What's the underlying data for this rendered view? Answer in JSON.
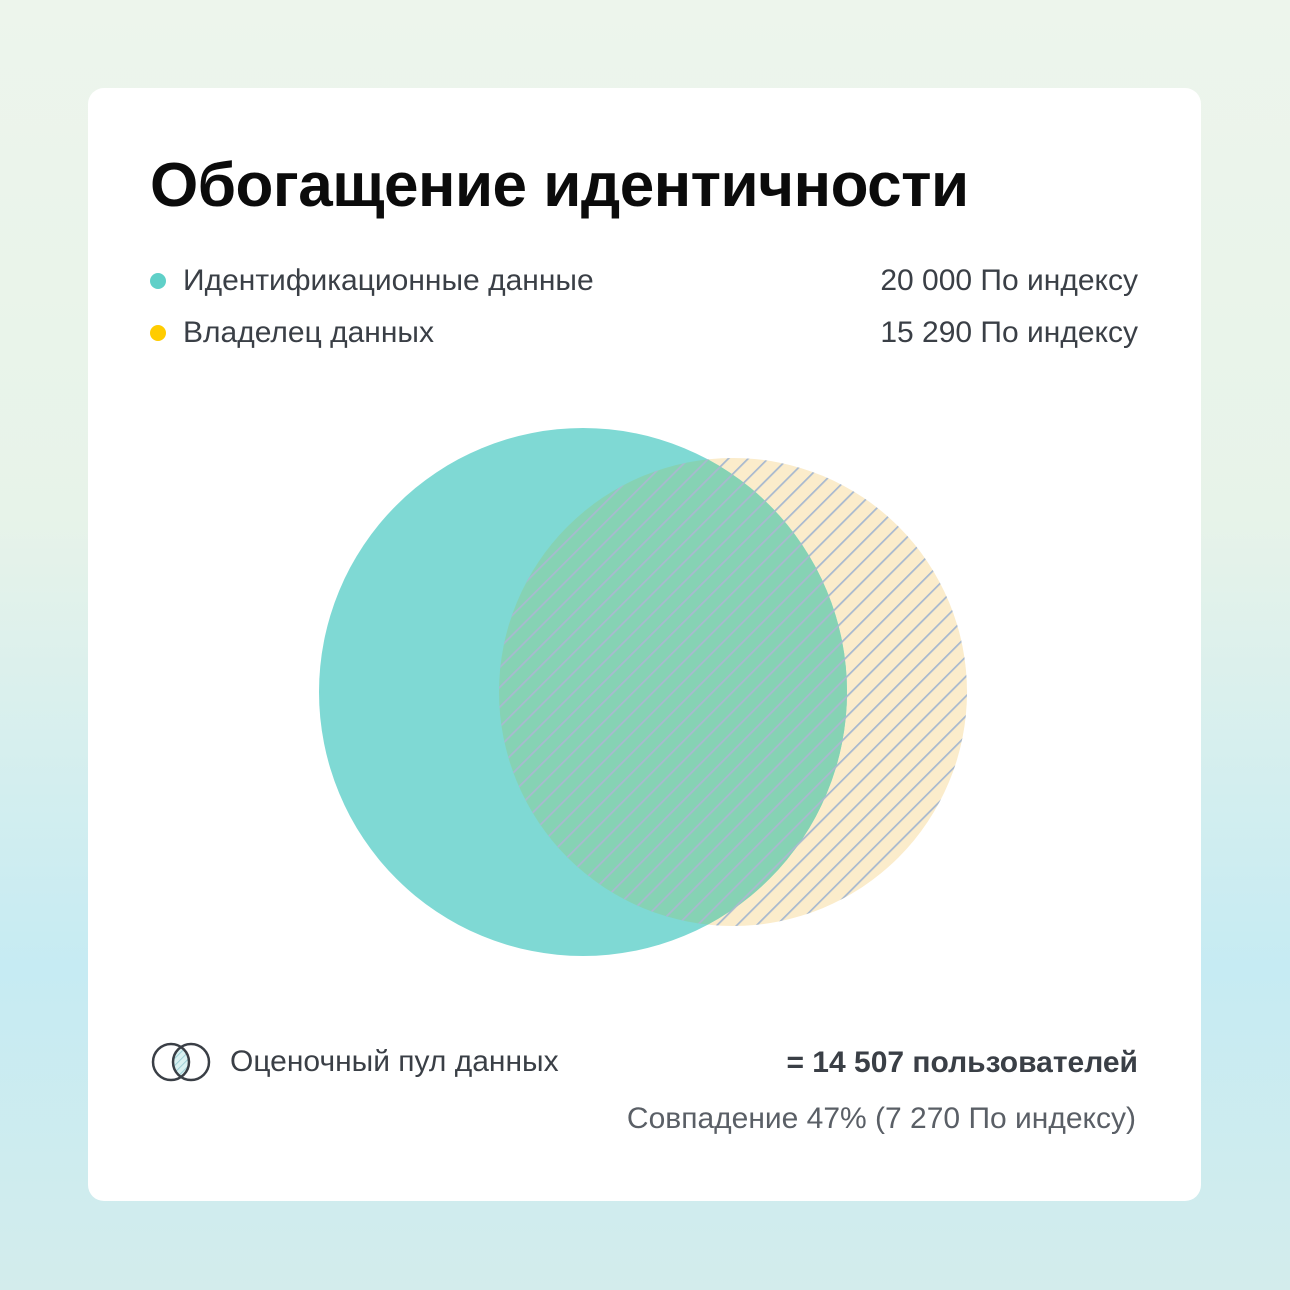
{
  "chart_data": {
    "type": "venn",
    "title": "Обогащение идентичности",
    "sets": [
      {
        "name": "Идентификационные данные",
        "value_label": "20 000 По индексу",
        "value": 20000,
        "color": "#5fd0c8",
        "fill": "solid"
      },
      {
        "name": "Владелец данных",
        "value_label": "15 290 По индексу",
        "value": 15290,
        "color": "#ffcc00",
        "fill": "hatched"
      }
    ],
    "pool": {
      "label": "Оценочный пул данных",
      "total_label": "= 14 507 пользователей",
      "total": 14507
    },
    "overlap": {
      "label": "Совпадение 47% (7 270 По индексу)",
      "percent": 47,
      "value": 7270
    },
    "colors": {
      "primary": "#7fd9d4",
      "secondary_fill": "#fbeccb",
      "hatch": "#a8b9cf",
      "text": "#3a3f46"
    }
  }
}
